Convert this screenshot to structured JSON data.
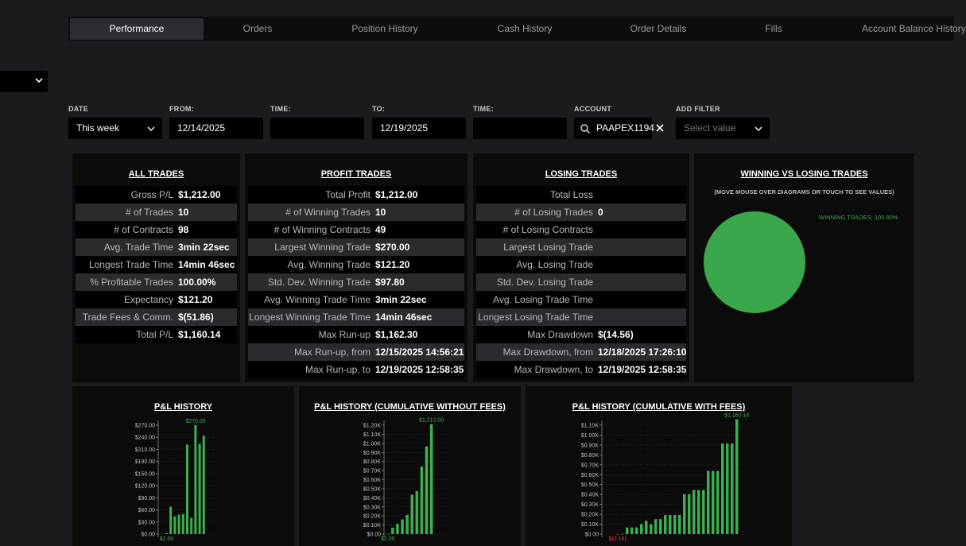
{
  "tabs": [
    "Performance",
    "Orders",
    "Position History",
    "Cash History",
    "Order Details",
    "Fills",
    "Account Balance History"
  ],
  "filters": {
    "date": {
      "label": "DATE",
      "value": "This week"
    },
    "from": {
      "label": "FROM:",
      "value": "12/14/2025"
    },
    "from_time": {
      "label": "TIME:"
    },
    "to": {
      "label": "TO:",
      "value": "12/19/2025"
    },
    "to_time": {
      "label": "TIME:"
    },
    "account": {
      "label": "ACCOUNT",
      "value": "PAAPEX1194"
    },
    "add_filter": {
      "label": "ADD FILTER",
      "placeholder": "Select value"
    }
  },
  "panels": [
    {
      "title": "ALL TRADES",
      "rows": [
        [
          "Gross P/L",
          "$1,212.00"
        ],
        [
          "# of Trades",
          "10"
        ],
        [
          "# of Contracts",
          "98"
        ],
        [
          "Avg. Trade Time",
          "3min 22sec"
        ],
        [
          "Longest Trade Time",
          "14min 46sec"
        ],
        [
          "% Profitable Trades",
          "100.00%"
        ],
        [
          "Expectancy",
          "$121.20"
        ],
        [
          "Trade Fees & Comm.",
          "$(51.86)"
        ],
        [
          "Total P/L",
          "$1,160.14"
        ]
      ]
    },
    {
      "title": "PROFIT TRADES",
      "rows": [
        [
          "Total Profit",
          "$1,212.00"
        ],
        [
          "# of Winning Trades",
          "10"
        ],
        [
          "# of Winning Contracts",
          "49"
        ],
        [
          "Largest Winning Trade",
          "$270.00"
        ],
        [
          "Avg. Winning Trade",
          "$121.20"
        ],
        [
          "Std. Dev. Winning Trade",
          "$97.80"
        ],
        [
          "Avg. Winning Trade Time",
          "3min 22sec"
        ],
        [
          "Longest Winning Trade Time",
          "14min 46sec"
        ],
        [
          "Max Run-up",
          "$1,162.30"
        ],
        [
          "Max Run-up, from",
          "12/15/2025 14:56:21"
        ],
        [
          "Max Run-up, to",
          "12/19/2025 12:58:35"
        ]
      ]
    },
    {
      "title": "LOSING TRADES",
      "rows": [
        [
          "Total Loss"
        ],
        [
          "# of Losing Trades",
          "0"
        ],
        [
          "# of Losing Contracts"
        ],
        [
          "Largest Losing Trade"
        ],
        [
          "Avg. Losing Trade"
        ],
        [
          "Std. Dev. Losing Trade"
        ],
        [
          "Avg. Losing Trade Time"
        ],
        [
          "Longest Losing Trade Time"
        ],
        [
          "Max Drawdown",
          "$(14.56)"
        ],
        [
          "Max Drawdown, from",
          "12/18/2025 17:26:10"
        ],
        [
          "Max Drawdown, to",
          "12/19/2025 12:58:35"
        ]
      ]
    }
  ],
  "pie": {
    "type": "pie",
    "title": "WINNING VS LOSING TRADES",
    "subtitle": "(MOVE MOUSE OVER DIAGRAMS OR TOUCH TO SEE VALUES)",
    "values": [
      100
    ],
    "value_labels": [
      "WINNING TRADES: 100.00%"
    ],
    "colors": [
      "#3aa84a"
    ]
  },
  "charts": [
    {
      "type": "bar",
      "title": "P&L HISTORY",
      "color": "#3fae4f",
      "values": [
        2,
        68,
        44,
        48,
        50,
        222,
        40,
        270,
        224,
        244
      ],
      "value_labels": [
        "$2.00",
        null,
        null,
        null,
        null,
        null,
        null,
        "$270.00",
        null,
        null
      ],
      "ylim": [
        0,
        270
      ],
      "yticks": [
        {
          "value": 0,
          "label": "$0.00"
        },
        {
          "value": 30,
          "label": "$30.00"
        },
        {
          "value": 60,
          "label": "$60.00"
        },
        {
          "value": 90,
          "label": "$90.00"
        },
        {
          "value": 120,
          "label": "$120.00"
        },
        {
          "value": 150,
          "label": "$150.00"
        },
        {
          "value": 180,
          "label": "$180.00"
        },
        {
          "value": 210,
          "label": "$210.00"
        },
        {
          "value": 240,
          "label": "$240.00"
        },
        {
          "value": 270,
          "label": "$270.00"
        }
      ]
    },
    {
      "type": "bar",
      "title": "P&L HISTORY (CUMULATIVE WITHOUT FEES)",
      "color": "#3fae4f",
      "values": [
        2,
        70,
        114,
        162,
        212,
        434,
        474,
        744,
        968,
        1212
      ],
      "value_labels": [
        "$2.00",
        null,
        null,
        null,
        null,
        null,
        null,
        null,
        null,
        "$1,212.00"
      ],
      "ylim": [
        0,
        1200
      ],
      "yticks": [
        {
          "value": 0,
          "label": "$0.00"
        },
        {
          "value": 100,
          "label": "$0.10K"
        },
        {
          "value": 200,
          "label": "$0.20K"
        },
        {
          "value": 300,
          "label": "$0.30K"
        },
        {
          "value": 400,
          "label": "$0.40K"
        },
        {
          "value": 500,
          "label": "$0.50K"
        },
        {
          "value": 600,
          "label": "$0.60K"
        },
        {
          "value": 700,
          "label": "$0.70K"
        },
        {
          "value": 800,
          "label": "$0.80K"
        },
        {
          "value": 900,
          "label": "$0.90K"
        },
        {
          "value": 1000,
          "label": "$1.00K"
        },
        {
          "value": 1100,
          "label": "$1.10K"
        },
        {
          "value": 1200,
          "label": "$1.20K"
        }
      ]
    },
    {
      "type": "bar",
      "title": "P&L HISTORY (CUMULATIVE WITH FEES)",
      "color": "#3fae4f",
      "values": [
        -2.16,
        2,
        67,
        67,
        67,
        100,
        134,
        100,
        151,
        151,
        193,
        193,
        193,
        193,
        403,
        403,
        445,
        445,
        445,
        638,
        638,
        638,
        916,
        916,
        916,
        1160.14
      ],
      "value_labels": [
        "$(2.16)",
        null,
        null,
        null,
        null,
        null,
        null,
        null,
        null,
        null,
        null,
        null,
        null,
        null,
        null,
        null,
        null,
        null,
        null,
        null,
        null,
        null,
        null,
        null,
        null,
        "$1,160.14"
      ],
      "ylim": [
        0,
        1100
      ],
      "yticks": [
        {
          "value": 0,
          "label": "$0.00"
        },
        {
          "value": 100,
          "label": "$0.10K"
        },
        {
          "value": 200,
          "label": "$0.20K"
        },
        {
          "value": 300,
          "label": "$0.30K"
        },
        {
          "value": 400,
          "label": "$0.40K"
        },
        {
          "value": 500,
          "label": "$0.50K"
        },
        {
          "value": 600,
          "label": "$0.60K"
        },
        {
          "value": 700,
          "label": "$0.70K"
        },
        {
          "value": 800,
          "label": "$0.80K"
        },
        {
          "value": 900,
          "label": "$0.90K"
        },
        {
          "value": 1000,
          "label": "$1.00K"
        },
        {
          "value": 1100,
          "label": "$1.10K"
        }
      ]
    }
  ]
}
